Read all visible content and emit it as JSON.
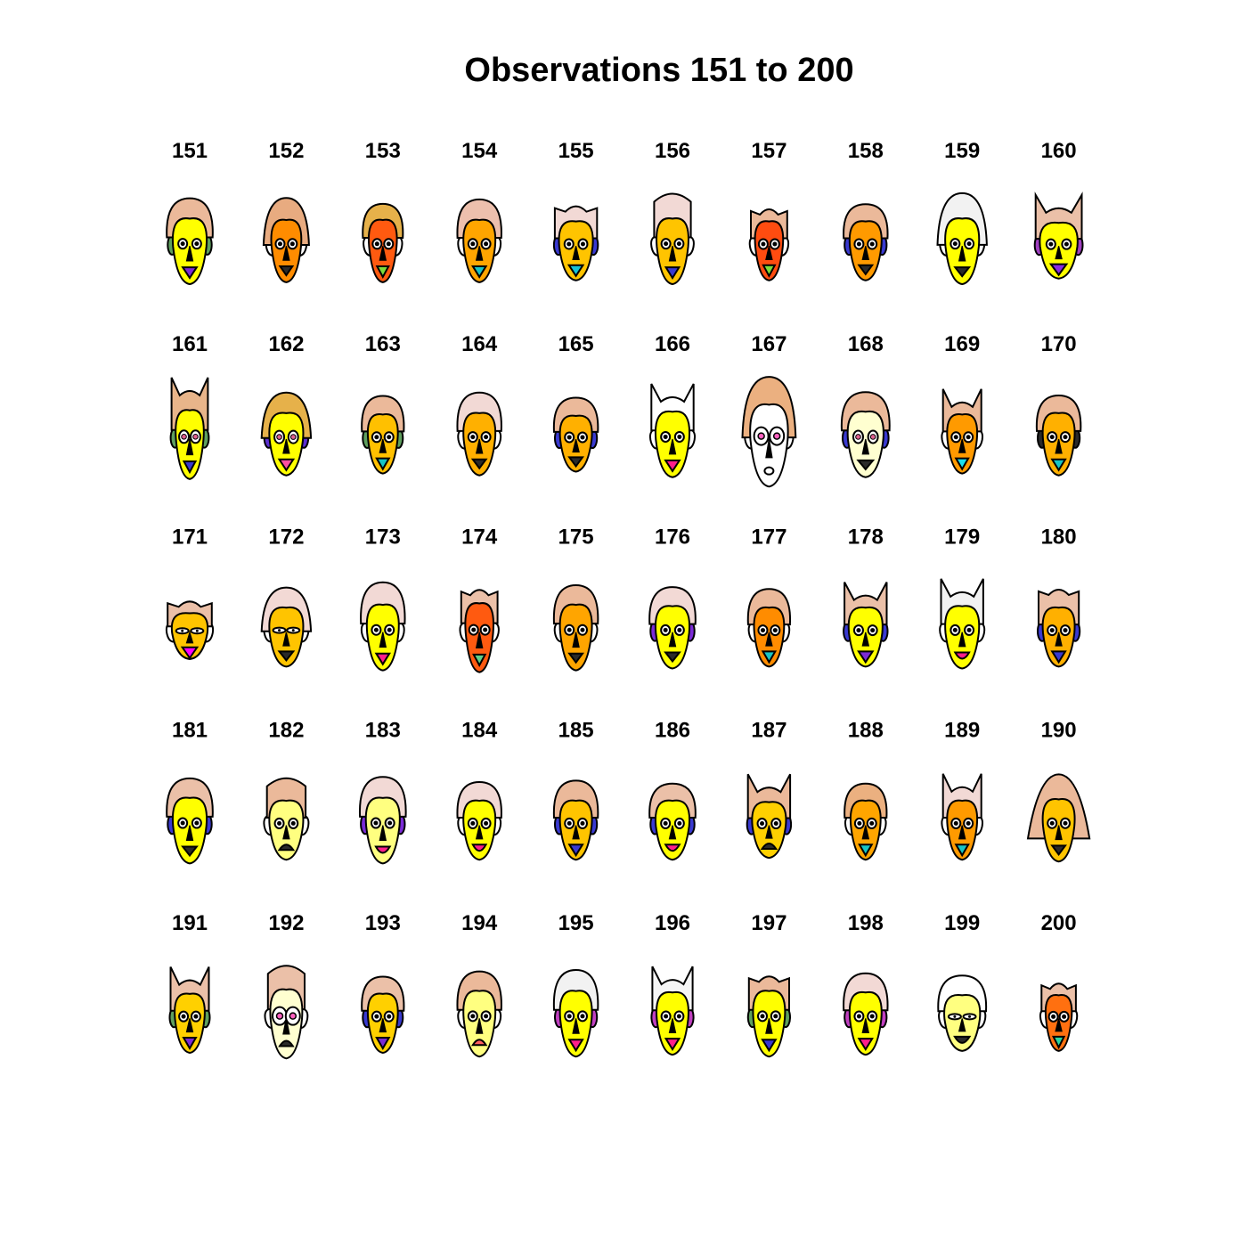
{
  "title": "Observations 151 to 200",
  "chart_data": {
    "type": "chernoff-faces",
    "title": "Observations 151 to 200",
    "grid": {
      "rows": 5,
      "cols": 10
    },
    "faces": [
      {
        "label": "151",
        "face": "#ffff00",
        "hair": "#ebb99a",
        "hairStyle": "round",
        "ear": "#5fa05f",
        "mouth": "#7b2bd6",
        "mouthStyle": "tri",
        "eyeStyle": "normal",
        "w": 0.85,
        "h": 1.0,
        "hairH": 0.75
      },
      {
        "label": "152",
        "face": "#ff8c00",
        "hair": "#e8ab80",
        "hairStyle": "long",
        "ear": "none",
        "mouth": "#2a2a2a",
        "mouthStyle": "line",
        "eyeStyle": "normal",
        "w": 0.75,
        "h": 0.95,
        "hairH": 0.9
      },
      {
        "label": "153",
        "face": "#ff5a10",
        "hair": "#e6b14a",
        "hairStyle": "round",
        "ear": "none",
        "mouth": "#7bdc3c",
        "mouthStyle": "tri",
        "eyeStyle": "normal",
        "w": 0.7,
        "h": 0.95,
        "hairH": 0.5
      },
      {
        "label": "154",
        "face": "#ffa500",
        "hair": "#edc0ad",
        "hairStyle": "round",
        "ear": "none",
        "mouth": "#19c4c4",
        "mouthStyle": "tri",
        "eyeStyle": "normal",
        "w": 0.8,
        "h": 0.95,
        "hairH": 0.8
      },
      {
        "label": "155",
        "face": "#ffc400",
        "hair": "#f2d9d5",
        "hairStyle": "spiky",
        "ear": "#3a3ad0",
        "mouth": "#17c3d6",
        "mouthStyle": "tri",
        "eyeStyle": "normal",
        "w": 0.85,
        "h": 0.9,
        "hairH": 0.7
      },
      {
        "label": "156",
        "face": "#ffc400",
        "hair": "#f2d9d5",
        "hairStyle": "tall",
        "ear": "none",
        "mouth": "#3a3ad0",
        "mouthStyle": "tri",
        "eyeStyle": "normal",
        "w": 0.8,
        "h": 1.0,
        "hairH": 1.0
      },
      {
        "label": "157",
        "face": "#ff4c10",
        "hair": "#ebb99a",
        "hairStyle": "spiky",
        "ear": "none",
        "mouth": "#7bdc3c",
        "mouthStyle": "tri",
        "eyeStyle": "normal",
        "w": 0.7,
        "h": 0.9,
        "hairH": 0.5
      },
      {
        "label": "158",
        "face": "#ff9a00",
        "hair": "#ebb99a",
        "hairStyle": "round",
        "ear": "#3a3ad0",
        "mouth": "#2a2a2a",
        "mouthStyle": "line",
        "eyeStyle": "normal",
        "w": 0.8,
        "h": 0.9,
        "hairH": 0.6
      },
      {
        "label": "159",
        "face": "#ffff00",
        "hair": "#f2f2f2",
        "hairStyle": "long",
        "ear": "none",
        "mouth": "#2a2a2a",
        "mouthStyle": "line",
        "eyeStyle": "normal",
        "w": 0.85,
        "h": 1.0,
        "hairH": 1.1
      },
      {
        "label": "160",
        "face": "#ffff00",
        "hair": "#ebc0a8",
        "hairStyle": "horns",
        "ear": "#a040c0",
        "mouth": "#8a2be2",
        "mouthStyle": "tri",
        "eyeStyle": "normal",
        "w": 0.95,
        "h": 0.85,
        "hairH": 1.0
      },
      {
        "label": "161",
        "face": "#ffff00",
        "hair": "#e8b58a",
        "hairStyle": "horns",
        "ear": "#5fa05f",
        "mouth": "#3a3ad0",
        "mouthStyle": "tri",
        "eyeStyle": "open",
        "w": 0.7,
        "h": 1.05,
        "hairH": 1.2
      },
      {
        "label": "162",
        "face": "#ffff00",
        "hair": "#e6b14a",
        "hairStyle": "long",
        "ear": "#5b2fd0",
        "mouth": "#ff4fa0",
        "mouthStyle": "tri",
        "eyeStyle": "open",
        "w": 0.85,
        "h": 0.95,
        "hairH": 0.8
      },
      {
        "label": "163",
        "face": "#ffc000",
        "hair": "#ebb99a",
        "hairStyle": "round",
        "ear": "#5fa05f",
        "mouth": "#19c4c4",
        "mouthStyle": "tri",
        "eyeStyle": "normal",
        "w": 0.75,
        "h": 0.9,
        "hairH": 0.7
      },
      {
        "label": "164",
        "face": "#ffb000",
        "hair": "#f2d9d5",
        "hairStyle": "round",
        "ear": "none",
        "mouth": "#2a2a2a",
        "mouthStyle": "line",
        "eyeStyle": "normal",
        "w": 0.8,
        "h": 0.95,
        "hairH": 0.8
      },
      {
        "label": "165",
        "face": "#ffb000",
        "hair": "#ebb99a",
        "hairStyle": "round",
        "ear": "#3a3ad0",
        "mouth": "#2a2a2a",
        "mouthStyle": "line",
        "eyeStyle": "normal",
        "w": 0.8,
        "h": 0.85,
        "hairH": 0.7
      },
      {
        "label": "166",
        "face": "#ffff00",
        "hair": "#ffffff",
        "hairStyle": "horns",
        "ear": "none",
        "mouth": "#ff1f8a",
        "mouthStyle": "tri",
        "eyeStyle": "normal",
        "w": 0.85,
        "h": 1.0,
        "hairH": 0.9
      },
      {
        "label": "167",
        "face": "#ffffff",
        "hair": "#ebb080",
        "hairStyle": "long",
        "ear": "none",
        "mouth": "#2a2a2a",
        "mouthStyle": "oval",
        "eyeStyle": "big",
        "w": 0.95,
        "h": 1.25,
        "hairH": 1.1
      },
      {
        "label": "168",
        "face": "#ffffd0",
        "hair": "#ebb99a",
        "hairStyle": "round",
        "ear": "#3a3ad0",
        "mouth": "#2a2a2a",
        "mouthStyle": "line",
        "eyeStyle": "open",
        "w": 0.9,
        "h": 1.0,
        "hairH": 0.7
      },
      {
        "label": "169",
        "face": "#ff9a00",
        "hair": "#ebb99a",
        "hairStyle": "horns",
        "ear": "none",
        "mouth": "#19e0f0",
        "mouthStyle": "tri",
        "eyeStyle": "normal",
        "w": 0.75,
        "h": 0.9,
        "hairH": 0.8
      },
      {
        "label": "170",
        "face": "#ffb000",
        "hair": "#ebb99a",
        "hairStyle": "round",
        "ear": "#2a2a2a",
        "mouth": "#19c4c4",
        "mouthStyle": "tri",
        "eyeStyle": "normal",
        "w": 0.8,
        "h": 0.95,
        "hairH": 0.6
      },
      {
        "label": "171",
        "face": "#ffc400",
        "hair": "#ebc0a8",
        "hairStyle": "spiky",
        "ear": "none",
        "mouth": "#ff00ff",
        "mouthStyle": "tri",
        "eyeStyle": "narrow",
        "w": 0.9,
        "h": 0.7,
        "hairH": 0.6
      },
      {
        "label": "172",
        "face": "#ffc400",
        "hair": "#f2d9d5",
        "hairStyle": "long",
        "ear": "none",
        "mouth": "#2a2a2a",
        "mouthStyle": "line",
        "eyeStyle": "narrow",
        "w": 0.85,
        "h": 0.9,
        "hairH": 0.8
      },
      {
        "label": "173",
        "face": "#ffff00",
        "hair": "#f2d9d5",
        "hairStyle": "round",
        "ear": "none",
        "mouth": "#ff1f8a",
        "mouthStyle": "tri",
        "eyeStyle": "normal",
        "w": 0.8,
        "h": 1.0,
        "hairH": 0.9
      },
      {
        "label": "174",
        "face": "#ff5a10",
        "hair": "#ebc0a8",
        "hairStyle": "spiky",
        "ear": "none",
        "mouth": "#5fd08a",
        "mouthStyle": "tri",
        "eyeStyle": "normal",
        "w": 0.7,
        "h": 1.05,
        "hairH": 0.5
      },
      {
        "label": "175",
        "face": "#ffa500",
        "hair": "#ebb99a",
        "hairStyle": "round",
        "ear": "none",
        "mouth": "#2a2a2a",
        "mouthStyle": "line",
        "eyeStyle": "normal",
        "w": 0.8,
        "h": 1.0,
        "hairH": 0.7
      },
      {
        "label": "176",
        "face": "#ffff00",
        "hair": "#f2d9d5",
        "hairStyle": "round",
        "ear": "#7b2bd6",
        "mouth": "#2a2a2a",
        "mouthStyle": "line",
        "eyeStyle": "normal",
        "w": 0.85,
        "h": 0.95,
        "hairH": 0.7
      },
      {
        "label": "177",
        "face": "#ff8c00",
        "hair": "#ebb99a",
        "hairStyle": "round",
        "ear": "none",
        "mouth": "#19c4c4",
        "mouthStyle": "tri",
        "eyeStyle": "normal",
        "w": 0.75,
        "h": 0.9,
        "hairH": 0.7
      },
      {
        "label": "178",
        "face": "#ffff00",
        "hair": "#ebc0a8",
        "hairStyle": "horns",
        "ear": "#3a3ad0",
        "mouth": "#7b2bd6",
        "mouthStyle": "tri",
        "eyeStyle": "normal",
        "w": 0.85,
        "h": 0.9,
        "hairH": 0.8
      },
      {
        "label": "179",
        "face": "#ffff00",
        "hair": "#f2f2f2",
        "hairStyle": "horns",
        "ear": "none",
        "mouth": "#ff1f8a",
        "mouthStyle": "smile",
        "eyeStyle": "normal",
        "w": 0.85,
        "h": 0.95,
        "hairH": 0.9
      },
      {
        "label": "180",
        "face": "#ffb000",
        "hair": "#ebc0a8",
        "hairStyle": "spiky",
        "ear": "#3a3ad0",
        "mouth": "#3a3ad0",
        "mouthStyle": "tri",
        "eyeStyle": "normal",
        "w": 0.8,
        "h": 0.9,
        "hairH": 0.9
      },
      {
        "label": "181",
        "face": "#ffff00",
        "hair": "#ebc0a8",
        "hairStyle": "round",
        "ear": "#3a3ad0",
        "mouth": "#2a2a2a",
        "mouthStyle": "line",
        "eyeStyle": "normal",
        "w": 0.85,
        "h": 1.0,
        "hairH": 0.7
      },
      {
        "label": "182",
        "face": "#ffff80",
        "hair": "#ebb99a",
        "hairStyle": "tall",
        "ear": "none",
        "mouth": "#2a2a2a",
        "mouthStyle": "frown",
        "eyeStyle": "normal",
        "w": 0.85,
        "h": 0.9,
        "hairH": 0.9
      },
      {
        "label": "183",
        "face": "#ffff80",
        "hair": "#f2d9d5",
        "hairStyle": "round",
        "ear": "#7b2bd6",
        "mouth": "#ff1f8a",
        "mouthStyle": "smile",
        "eyeStyle": "normal",
        "w": 0.85,
        "h": 1.0,
        "hairH": 0.8
      },
      {
        "label": "184",
        "face": "#ffff00",
        "hair": "#f2d9d5",
        "hairStyle": "round",
        "ear": "none",
        "mouth": "#ff1f8a",
        "mouthStyle": "smile",
        "eyeStyle": "normal",
        "w": 0.8,
        "h": 0.9,
        "hairH": 0.7
      },
      {
        "label": "185",
        "face": "#ffc400",
        "hair": "#ebb99a",
        "hairStyle": "round",
        "ear": "#3a3ad0",
        "mouth": "#3a3ad0",
        "mouthStyle": "tri",
        "eyeStyle": "normal",
        "w": 0.8,
        "h": 0.9,
        "hairH": 0.8
      },
      {
        "label": "186",
        "face": "#ffff00",
        "hair": "#ebc0a8",
        "hairStyle": "round",
        "ear": "#3a3ad0",
        "mouth": "#ff1f8a",
        "mouthStyle": "smile",
        "eyeStyle": "normal",
        "w": 0.85,
        "h": 0.9,
        "hairH": 0.6
      },
      {
        "label": "187",
        "face": "#ffd000",
        "hair": "#ebb99a",
        "hairStyle": "horns",
        "ear": "#3a3ad0",
        "mouth": "#2a2a2a",
        "mouthStyle": "frown",
        "eyeStyle": "normal",
        "w": 0.85,
        "h": 0.85,
        "hairH": 1.0
      },
      {
        "label": "188",
        "face": "#ffa500",
        "hair": "#ebb080",
        "hairStyle": "round",
        "ear": "none",
        "mouth": "#19c4c4",
        "mouthStyle": "tri",
        "eyeStyle": "normal",
        "w": 0.75,
        "h": 0.9,
        "hairH": 0.6
      },
      {
        "label": "189",
        "face": "#ff9a00",
        "hair": "#f2d9d5",
        "hairStyle": "horns",
        "ear": "none",
        "mouth": "#19c4c4",
        "mouthStyle": "tri",
        "eyeStyle": "normal",
        "w": 0.75,
        "h": 0.9,
        "hairH": 0.9
      },
      {
        "label": "190",
        "face": "#ffc400",
        "hair": "#ebb99a",
        "hairStyle": "wide",
        "ear": "#3a3ad0",
        "mouth": "#2a2a2a",
        "mouthStyle": "line",
        "eyeStyle": "normal",
        "w": 0.8,
        "h": 0.95,
        "hairH": 1.1
      },
      {
        "label": "191",
        "face": "#ffd000",
        "hair": "#ebc0a8",
        "hairStyle": "horns",
        "ear": "#5fa05f",
        "mouth": "#7b2bd6",
        "mouthStyle": "tri",
        "eyeStyle": "normal",
        "w": 0.75,
        "h": 0.9,
        "hairH": 0.9
      },
      {
        "label": "192",
        "face": "#ffffd0",
        "hair": "#ebc0a8",
        "hairStyle": "tall",
        "ear": "none",
        "mouth": "#2a2a2a",
        "mouthStyle": "frown",
        "eyeStyle": "big",
        "w": 0.8,
        "h": 1.05,
        "hairH": 0.9
      },
      {
        "label": "193",
        "face": "#ffd000",
        "hair": "#ebc0a8",
        "hairStyle": "round",
        "ear": "#3a3ad0",
        "mouth": "#7b2bd6",
        "mouthStyle": "tri",
        "eyeStyle": "normal",
        "w": 0.75,
        "h": 0.9,
        "hairH": 0.6
      },
      {
        "label": "194",
        "face": "#ffff80",
        "hair": "#ebb99a",
        "hairStyle": "round",
        "ear": "none",
        "mouth": "#ff6060",
        "mouthStyle": "frown",
        "eyeStyle": "normal",
        "w": 0.8,
        "h": 1.0,
        "hairH": 0.7
      },
      {
        "label": "195",
        "face": "#ffff00",
        "hair": "#f2f2f2",
        "hairStyle": "round",
        "ear": "#c040c0",
        "mouth": "#ff1f8a",
        "mouthStyle": "tri",
        "eyeStyle": "normal",
        "w": 0.8,
        "h": 1.0,
        "hairH": 0.8
      },
      {
        "label": "196",
        "face": "#ffff00",
        "hair": "#f5f5f5",
        "hairStyle": "horns",
        "ear": "#c040c0",
        "mouth": "#ff1f8a",
        "mouthStyle": "tri",
        "eyeStyle": "normal",
        "w": 0.8,
        "h": 0.95,
        "hairH": 0.8
      },
      {
        "label": "197",
        "face": "#ffff00",
        "hair": "#ebb99a",
        "hairStyle": "spiky",
        "ear": "#5fa05f",
        "mouth": "#3a3ad0",
        "mouthStyle": "tri",
        "eyeStyle": "normal",
        "w": 0.8,
        "h": 1.0,
        "hairH": 0.6
      },
      {
        "label": "198",
        "face": "#ffff00",
        "hair": "#f2d9d5",
        "hairStyle": "round",
        "ear": "#c040c0",
        "mouth": "#ff1f8a",
        "mouthStyle": "tri",
        "eyeStyle": "normal",
        "w": 0.8,
        "h": 0.95,
        "hairH": 0.7
      },
      {
        "label": "199",
        "face": "#ffff80",
        "hair": "#ffffff",
        "hairStyle": "round",
        "ear": "none",
        "mouth": "#2a2a2a",
        "mouthStyle": "smile",
        "eyeStyle": "narrow",
        "w": 0.9,
        "h": 0.85,
        "hairH": 0.8
      },
      {
        "label": "200",
        "face": "#ff7010",
        "hair": "#ebc0a8",
        "hairStyle": "spiky",
        "ear": "none",
        "mouth": "#2ad6a0",
        "mouthStyle": "tri",
        "eyeStyle": "normal",
        "w": 0.65,
        "h": 0.85,
        "hairH": 0.5
      }
    ]
  }
}
